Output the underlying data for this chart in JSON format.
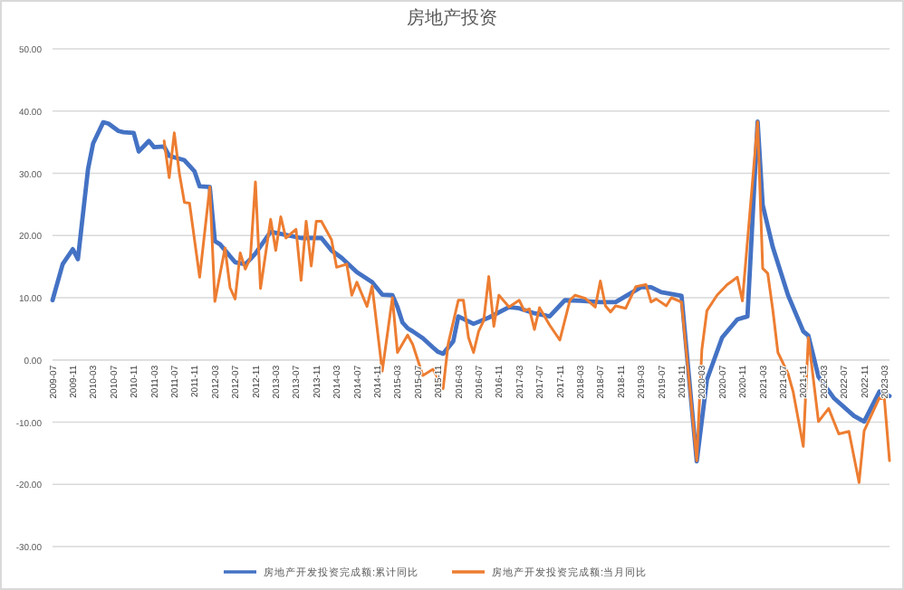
{
  "chart_data": {
    "type": "line",
    "title": "房地产投资",
    "xlim": [
      "2009-07",
      "2023-04"
    ],
    "xticks": [
      "2009-07",
      "2009-11",
      "2010-03",
      "2010-07",
      "2010-11",
      "2011-03",
      "2011-07",
      "2011-11",
      "2012-03",
      "2012-07",
      "2012-11",
      "2013-03",
      "2013-07",
      "2013-11",
      "2014-03",
      "2014-07",
      "2014-11",
      "2015-03",
      "2015-07",
      "2015-11",
      "2016-03",
      "2016-07",
      "2016-11",
      "2017-03",
      "2017-07",
      "2017-11",
      "2018-03",
      "2018-07",
      "2018-11",
      "2019-03",
      "2019-07",
      "2019-11",
      "2020-03",
      "2020-07",
      "2020-11",
      "2021-03",
      "2021-07",
      "2021-11",
      "2022-03",
      "2022-07",
      "2022-11",
      "2023-03"
    ],
    "ylim": [
      -30,
      50
    ],
    "yticks": [
      {
        "value": -30,
        "label": "-30.00"
      },
      {
        "value": -20,
        "label": "-20.00"
      },
      {
        "value": -10,
        "label": "-10.00"
      },
      {
        "value": 0,
        "label": "0.00"
      },
      {
        "value": 10,
        "label": "10.00"
      },
      {
        "value": 20,
        "label": "20.00"
      },
      {
        "value": 30,
        "label": "30.00"
      },
      {
        "value": 40,
        "label": "40.00"
      },
      {
        "value": 50,
        "label": "50.00"
      }
    ],
    "grid": "y",
    "legend": "bottom",
    "marker": "none",
    "line_style": "solid",
    "series": [
      {
        "name": "房地产开发投资完成额:累计同比",
        "color": "#4472c4",
        "x": [
          "2009-07",
          "2009-09",
          "2009-11",
          "2009-12",
          "2010-02",
          "2010-03",
          "2010-05",
          "2010-06",
          "2010-08",
          "2010-09",
          "2010-11",
          "2010-12",
          "2011-02",
          "2011-03",
          "2011-05",
          "2011-06",
          "2011-09",
          "2011-11",
          "2011-12",
          "2012-02",
          "2012-03",
          "2012-04",
          "2012-07",
          "2012-09",
          "2012-10",
          "2012-11",
          "2013-02",
          "2013-05",
          "2013-08",
          "2013-10",
          "2013-12",
          "2014-02",
          "2014-04",
          "2014-07",
          "2014-10",
          "2014-12",
          "2015-02",
          "2015-03",
          "2015-04",
          "2015-05",
          "2015-06",
          "2015-08",
          "2015-10",
          "2015-11",
          "2015-12",
          "2016-02",
          "2016-03",
          "2016-06",
          "2016-09",
          "2017-01",
          "2017-03",
          "2017-06",
          "2017-09",
          "2017-12",
          "2018-03",
          "2018-07",
          "2018-10",
          "2019-03",
          "2019-05",
          "2019-07",
          "2019-11",
          "2020-02",
          "2020-04",
          "2020-07",
          "2020-10",
          "2020-12",
          "2021-02",
          "2021-03",
          "2021-05",
          "2021-08",
          "2021-11",
          "2021-12",
          "2022-02",
          "2022-05",
          "2022-09",
          "2022-11",
          "2023-02",
          "2023-04"
        ],
        "values": [
          9.6,
          15.4,
          17.8,
          16.2,
          30.7,
          34.8,
          38.2,
          38.0,
          36.8,
          36.6,
          36.5,
          33.5,
          35.2,
          34.2,
          34.3,
          32.8,
          32.1,
          30.3,
          27.9,
          27.8,
          19.1,
          18.6,
          15.7,
          15.4,
          16.2,
          17.1,
          20.6,
          20.1,
          19.6,
          19.6,
          19.6,
          17.6,
          16.4,
          14.1,
          12.5,
          10.5,
          10.4,
          8.5,
          6.0,
          5.1,
          4.6,
          3.5,
          2.0,
          1.3,
          1.0,
          3.0,
          7.0,
          5.8,
          6.8,
          8.5,
          8.3,
          7.5,
          7.0,
          9.6,
          9.5,
          9.3,
          9.3,
          11.7,
          11.7,
          10.9,
          10.3,
          -16.3,
          -3.2,
          3.6,
          6.5,
          7.0,
          38.3,
          24.9,
          18.1,
          10.4,
          4.6,
          3.9,
          -2.7,
          -6.1,
          -9.0,
          -9.9,
          -5.1,
          -5.8
        ]
      },
      {
        "name": "房地产开发投资完成额:当月同比",
        "color": "#ed7d31",
        "x": [
          "2011-05",
          "2011-06",
          "2011-07",
          "2011-08",
          "2011-09",
          "2011-10",
          "2011-12",
          "2012-02",
          "2012-03",
          "2012-05",
          "2012-06",
          "2012-07",
          "2012-08",
          "2012-09",
          "2012-10",
          "2012-11",
          "2012-12",
          "2013-02",
          "2013-03",
          "2013-04",
          "2013-05",
          "2013-07",
          "2013-08",
          "2013-09",
          "2013-10",
          "2013-11",
          "2013-12",
          "2014-02",
          "2014-03",
          "2014-05",
          "2014-06",
          "2014-07",
          "2014-09",
          "2014-10",
          "2014-12",
          "2015-02",
          "2015-03",
          "2015-05",
          "2015-06",
          "2015-08",
          "2015-10",
          "2015-11",
          "2015-12",
          "2016-01",
          "2016-03",
          "2016-04",
          "2016-05",
          "2016-06",
          "2016-07",
          "2016-08",
          "2016-09",
          "2016-10",
          "2016-11",
          "2017-01",
          "2017-03",
          "2017-04",
          "2017-05",
          "2017-06",
          "2017-07",
          "2017-09",
          "2017-11",
          "2018-01",
          "2018-02",
          "2018-04",
          "2018-06",
          "2018-07",
          "2018-08",
          "2018-09",
          "2018-10",
          "2018-12",
          "2019-02",
          "2019-04",
          "2019-05",
          "2019-06",
          "2019-08",
          "2019-09",
          "2019-11",
          "2020-02",
          "2020-03",
          "2020-04",
          "2020-06",
          "2020-08",
          "2020-09",
          "2020-10",
          "2020-11",
          "2021-02",
          "2021-03",
          "2021-04",
          "2021-05",
          "2021-06",
          "2021-08",
          "2021-09",
          "2021-11",
          "2021-12",
          "2022-02",
          "2022-04",
          "2022-06",
          "2022-08",
          "2022-10",
          "2022-11",
          "2023-02",
          "2023-03",
          "2023-04"
        ],
        "values": [
          35.2,
          29.3,
          36.5,
          30,
          25.3,
          25.2,
          13.3,
          27.8,
          9.4,
          18,
          11.6,
          9.8,
          17.2,
          14.6,
          16.4,
          28.6,
          11.5,
          22.6,
          17.6,
          23,
          19.6,
          21,
          12.8,
          22.3,
          15.1,
          22.3,
          22.3,
          19.3,
          14.9,
          15.4,
          10.4,
          12.5,
          8.6,
          11.9,
          -1.8,
          10,
          1.2,
          4,
          2.5,
          -2.5,
          -1.5,
          -3,
          -4.6,
          2.6,
          9.6,
          9.6,
          3.6,
          1.2,
          4.6,
          6.3,
          13.4,
          5.4,
          10.4,
          8.5,
          9.6,
          7.9,
          8.2,
          4.9,
          8.4,
          5.6,
          3.2,
          9.6,
          10.4,
          9.9,
          8.5,
          12.7,
          8.7,
          7.7,
          8.7,
          8.3,
          11.8,
          12.1,
          9.3,
          9.8,
          8.7,
          10.0,
          9.3,
          -16.2,
          1.6,
          7.9,
          10.4,
          12.1,
          12.7,
          13.3,
          9.5,
          38.3,
          14.7,
          13.9,
          8,
          1.2,
          -2.2,
          -5.1,
          -13.9,
          3.6,
          -9.9,
          -7.8,
          -11.9,
          -11.5,
          -19.7,
          -11.4,
          -6.1,
          -6.3,
          -16.2
        ]
      }
    ]
  }
}
